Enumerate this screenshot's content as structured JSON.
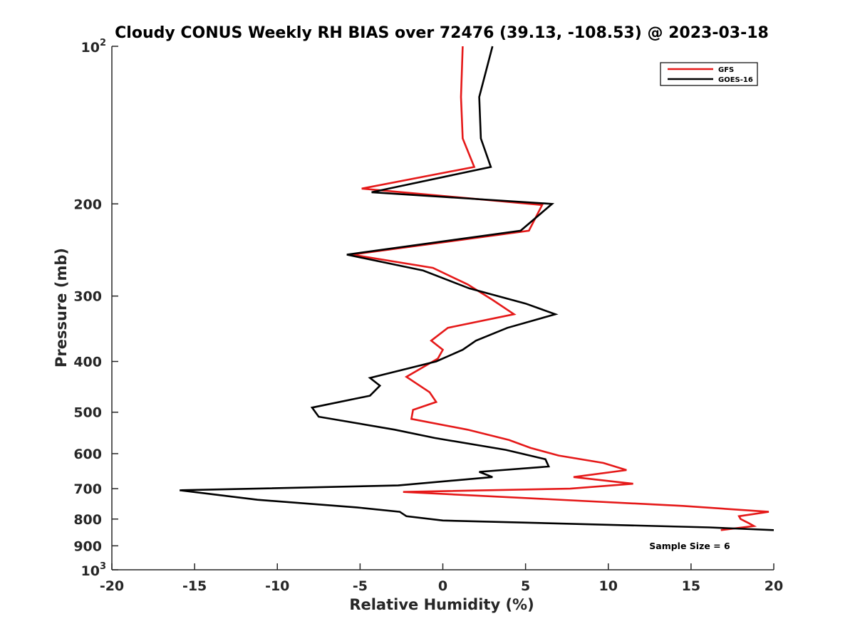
{
  "chart_data": {
    "type": "line",
    "title": "Cloudy CONUS Weekly RH BIAS over 72476 (39.13, -108.53) @ 2023-03-18",
    "xlabel": "Relative Humidity (%)",
    "ylabel": "Pressure (mb)",
    "xlim": [
      -20,
      20
    ],
    "ylim": [
      100,
      1000
    ],
    "y_scale": "log",
    "y_reversed": true,
    "grid": false,
    "legend_position": "top-right",
    "x_ticks": [
      "-20",
      "-15",
      "-10",
      "-5",
      "0",
      "5",
      "10",
      "15",
      "20"
    ],
    "y_ticks": [
      {
        "value": 100,
        "base": "10",
        "exp": "2"
      },
      {
        "value": 200,
        "label": "200"
      },
      {
        "value": 300,
        "label": "300"
      },
      {
        "value": 400,
        "label": "400"
      },
      {
        "value": 500,
        "label": "500"
      },
      {
        "value": 600,
        "label": "600"
      },
      {
        "value": 700,
        "label": "700"
      },
      {
        "value": 800,
        "label": "800"
      },
      {
        "value": 900,
        "label": "900"
      },
      {
        "value": 1000,
        "base": "10",
        "exp": "3"
      }
    ],
    "series": [
      {
        "name": "GFS",
        "color": "#e51919",
        "points": [
          [
            1.2,
            100
          ],
          [
            1.1,
            125
          ],
          [
            1.2,
            150
          ],
          [
            1.9,
            170
          ],
          [
            -4.9,
            187
          ],
          [
            6.0,
            201
          ],
          [
            5.2,
            225
          ],
          [
            -5.5,
            250
          ],
          [
            -0.6,
            265
          ],
          [
            1.5,
            285
          ],
          [
            3.0,
            305
          ],
          [
            4.3,
            325
          ],
          [
            0.3,
            345
          ],
          [
            -0.7,
            365
          ],
          [
            0.0,
            380
          ],
          [
            -0.3,
            395
          ],
          [
            -2.2,
            428
          ],
          [
            -0.8,
            458
          ],
          [
            -0.4,
            478
          ],
          [
            -1.8,
            495
          ],
          [
            -1.9,
            515
          ],
          [
            1.5,
            540
          ],
          [
            4.0,
            565
          ],
          [
            5.3,
            585
          ],
          [
            7.0,
            605
          ],
          [
            9.7,
            625
          ],
          [
            11.1,
            645
          ],
          [
            7.9,
            665
          ],
          [
            11.5,
            685
          ],
          [
            7.7,
            700
          ],
          [
            -2.4,
            710
          ],
          [
            14.5,
            755
          ],
          [
            19.7,
            775
          ],
          [
            17.9,
            790
          ],
          [
            18.0,
            800
          ],
          [
            18.5,
            815
          ],
          [
            18.8,
            825
          ],
          [
            16.8,
            840
          ]
        ]
      },
      {
        "name": "GOES-16",
        "color": "#000000",
        "points": [
          [
            3.0,
            100
          ],
          [
            2.2,
            125
          ],
          [
            2.3,
            150
          ],
          [
            2.9,
            170
          ],
          [
            -4.3,
            190
          ],
          [
            6.6,
            200
          ],
          [
            4.7,
            225
          ],
          [
            -5.8,
            250
          ],
          [
            -1.2,
            268
          ],
          [
            1.6,
            290
          ],
          [
            5.0,
            310
          ],
          [
            6.8,
            325
          ],
          [
            3.9,
            345
          ],
          [
            2.0,
            365
          ],
          [
            1.2,
            380
          ],
          [
            -0.4,
            400
          ],
          [
            -4.4,
            430
          ],
          [
            -3.8,
            445
          ],
          [
            -4.4,
            465
          ],
          [
            -7.9,
            490
          ],
          [
            -7.5,
            510
          ],
          [
            -2.9,
            540
          ],
          [
            -0.5,
            560
          ],
          [
            3.8,
            590
          ],
          [
            6.2,
            615
          ],
          [
            6.4,
            635
          ],
          [
            2.2,
            650
          ],
          [
            3.0,
            665
          ],
          [
            -2.7,
            690
          ],
          [
            -15.9,
            705
          ],
          [
            -11.2,
            735
          ],
          [
            -5.2,
            760
          ],
          [
            -2.6,
            775
          ],
          [
            -2.2,
            790
          ],
          [
            0.0,
            805
          ],
          [
            16.1,
            830
          ],
          [
            20.0,
            840
          ]
        ]
      }
    ],
    "annotations": [
      "Sample Size = 6"
    ]
  }
}
